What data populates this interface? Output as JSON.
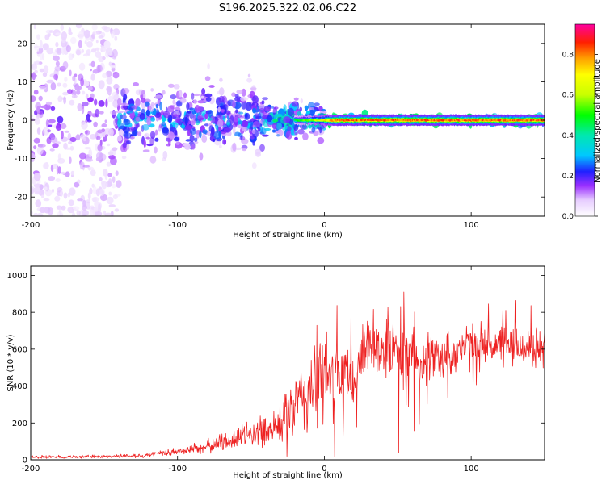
{
  "title": "S196.2025.322.02.06.C22",
  "colors": {
    "snr_line": "#ee2222",
    "spectrogram_core": "#ee2222",
    "spectrogram_noise": "#6a00e8"
  },
  "chart_data": [
    {
      "type": "heatmap",
      "name": "spectrogram",
      "xlabel": "Height of straight line (km)",
      "ylabel": "Frequency (Hz)",
      "xlim": [
        -200,
        150
      ],
      "ylim": [
        -25,
        25
      ],
      "xticks": [
        -200,
        -100,
        0,
        100
      ],
      "xtick_labels": [
        "-200",
        "-100",
        "0",
        "100"
      ],
      "yticks": [
        -20,
        -10,
        0,
        10,
        20
      ],
      "ytick_labels": [
        "-20",
        "-10",
        "0",
        "10",
        "20"
      ],
      "signal_center_hz": 0,
      "description_regions": [
        {
          "from_km": -200,
          "to_km": -140,
          "spread_hz": 25,
          "amplitude": 0.15
        },
        {
          "from_km": -140,
          "to_km": -40,
          "spread_hz": 8,
          "amplitude": 0.3
        },
        {
          "from_km": -40,
          "to_km": 0,
          "spread_hz": 4,
          "amplitude": 0.45
        },
        {
          "from_km": 0,
          "to_km": 150,
          "spread_hz": 1,
          "amplitude": 0.95
        }
      ],
      "colorbar": {
        "label": "Normalized spectral amplitude",
        "range": [
          0,
          0.95
        ],
        "ticks": [
          0.0,
          0.2,
          0.4,
          0.6,
          0.8
        ],
        "tick_labels": [
          "0.0",
          "0.2",
          "0.4",
          "0.6",
          "0.8"
        ],
        "stops": [
          {
            "v": 0.0,
            "color": "#ffffff"
          },
          {
            "v": 0.08,
            "color": "#e6ccff"
          },
          {
            "v": 0.15,
            "color": "#9b30ff"
          },
          {
            "v": 0.22,
            "color": "#2020ff"
          },
          {
            "v": 0.3,
            "color": "#00c8ff"
          },
          {
            "v": 0.4,
            "color": "#00e8b0"
          },
          {
            "v": 0.5,
            "color": "#00ff00"
          },
          {
            "v": 0.6,
            "color": "#c8ff00"
          },
          {
            "v": 0.7,
            "color": "#ffff00"
          },
          {
            "v": 0.78,
            "color": "#ffa000"
          },
          {
            "v": 0.86,
            "color": "#ff2000"
          },
          {
            "v": 0.95,
            "color": "#ff00a0"
          }
        ]
      }
    },
    {
      "type": "line",
      "name": "snr",
      "xlabel": "Height of straight line (km)",
      "ylabel": "SNR (10 * v/v)",
      "xlim": [
        -200,
        150
      ],
      "ylim": [
        0,
        1050
      ],
      "xticks": [
        -200,
        -100,
        0,
        100
      ],
      "xtick_labels": [
        "-200",
        "-100",
        "0",
        "100"
      ],
      "yticks": [
        0,
        200,
        400,
        600,
        800,
        1000
      ],
      "ytick_labels": [
        "0",
        "200",
        "400",
        "600",
        "800",
        "1000"
      ],
      "envelope": {
        "x": [
          -200,
          -150,
          -120,
          -100,
          -80,
          -60,
          -40,
          -20,
          -10,
          0,
          10,
          20,
          25,
          30,
          40,
          50,
          60,
          80,
          100,
          120,
          150
        ],
        "mean": [
          15,
          18,
          25,
          45,
          70,
          120,
          160,
          280,
          380,
          450,
          460,
          420,
          560,
          650,
          620,
          580,
          560,
          560,
          620,
          620,
          600
        ],
        "noise": [
          8,
          8,
          12,
          20,
          35,
          60,
          80,
          160,
          250,
          260,
          240,
          150,
          150,
          180,
          180,
          170,
          160,
          120,
          120,
          110,
          110
        ]
      },
      "samples": 1100
    }
  ]
}
